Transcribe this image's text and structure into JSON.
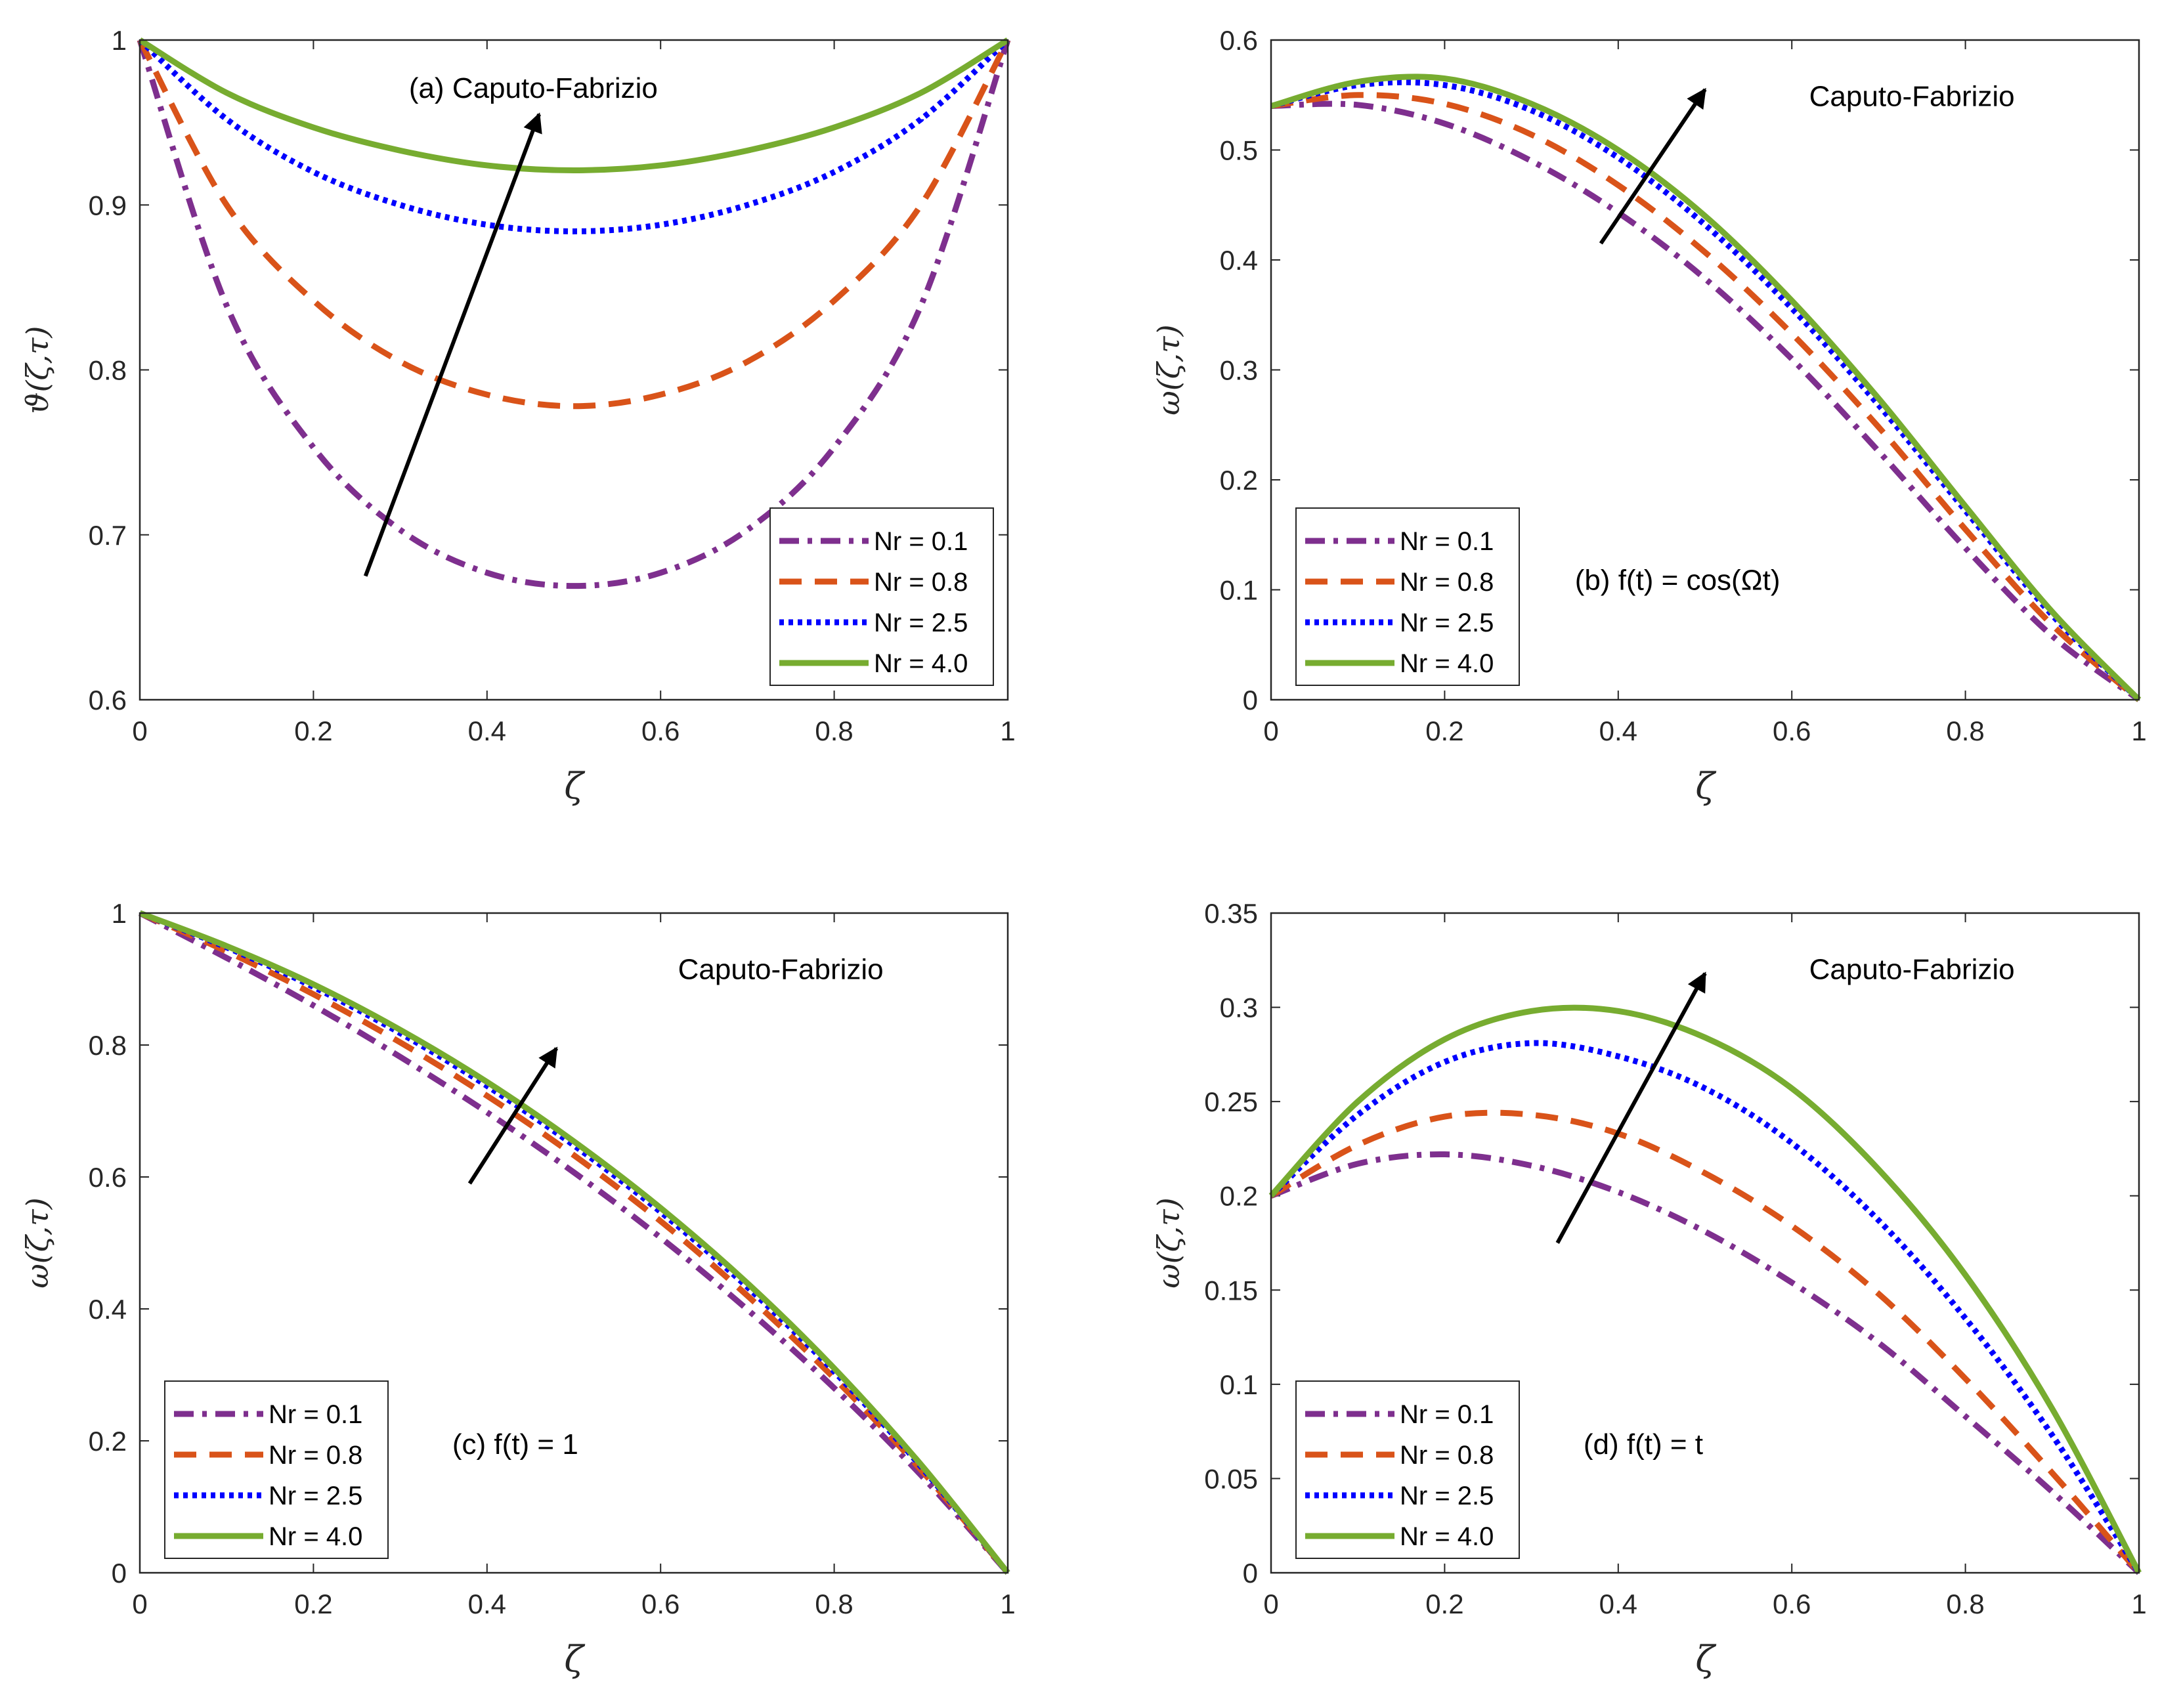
{
  "figure_title": "",
  "colors": {
    "axes": "#262626",
    "arrow": "#000000",
    "series": [
      "#7E2F8E",
      "#D95319",
      "#0000FF",
      "#77AC30"
    ]
  },
  "chart_data": [
    {
      "type": "line",
      "id": "a",
      "title": "",
      "xlabel": "ζ",
      "ylabel": "ϑ(ζ,τ)",
      "xlim": [
        0,
        1
      ],
      "ylim": [
        0.6,
        1
      ],
      "xticks": [
        "0",
        "0.2",
        "0.4",
        "0.6",
        "0.8",
        "1"
      ],
      "yticks": [
        "0.6",
        "0.7",
        "0.8",
        "0.9",
        "1"
      ],
      "annotations": [
        {
          "text": "(a) Caputo-Fabrizio",
          "x": 0.31,
          "y": 0.965
        }
      ],
      "arrow": {
        "from": [
          0.26,
          0.675
        ],
        "to": [
          0.46,
          0.955
        ]
      },
      "legend": {
        "position": "bottom-right",
        "entries": [
          "Nr = 0.1",
          "Nr = 0.8",
          "Nr = 2.5",
          "Nr = 4.0"
        ]
      },
      "x": [
        0,
        0.1,
        0.2,
        0.3,
        0.4,
        0.5,
        0.6,
        0.7,
        0.8,
        0.9,
        1
      ],
      "series": [
        {
          "name": "Nr = 0.1",
          "style": "dashdot",
          "values": [
            1,
            0.839,
            0.753,
            0.703,
            0.677,
            0.669,
            0.677,
            0.703,
            0.753,
            0.839,
            1
          ]
        },
        {
          "name": "Nr = 0.8",
          "style": "dashed",
          "values": [
            1,
            0.9,
            0.842,
            0.805,
            0.785,
            0.778,
            0.785,
            0.805,
            0.842,
            0.9,
            1
          ]
        },
        {
          "name": "Nr = 2.5",
          "style": "dotted",
          "values": [
            1,
            0.952,
            0.92,
            0.9,
            0.888,
            0.884,
            0.888,
            0.9,
            0.92,
            0.952,
            1
          ]
        },
        {
          "name": "Nr = 4.0",
          "style": "solid",
          "values": [
            1,
            0.968,
            0.947,
            0.933,
            0.924,
            0.921,
            0.924,
            0.933,
            0.947,
            0.968,
            1
          ]
        }
      ]
    },
    {
      "type": "line",
      "id": "b",
      "title": "",
      "xlabel": "ζ",
      "ylabel": "ω(ζ,τ)",
      "xlim": [
        0,
        1
      ],
      "ylim": [
        0,
        0.6
      ],
      "xticks": [
        "0",
        "0.2",
        "0.4",
        "0.6",
        "0.8",
        "1"
      ],
      "yticks": [
        "0",
        "0.1",
        "0.2",
        "0.3",
        "0.4",
        "0.5",
        "0.6"
      ],
      "annotations": [
        {
          "text": "Caputo-Fabrizio",
          "x": 0.62,
          "y": 0.54
        },
        {
          "text": "(b) f(t) = cos(Ωt)",
          "x": 0.35,
          "y": 0.1
        }
      ],
      "arrow": {
        "from": [
          0.38,
          0.415
        ],
        "to": [
          0.5,
          0.555
        ]
      },
      "legend": {
        "position": "bottom-left",
        "entries": [
          "Nr = 0.1",
          "Nr = 0.8",
          "Nr = 2.5",
          "Nr = 4.0"
        ]
      },
      "x": [
        0,
        0.1,
        0.2,
        0.3,
        0.4,
        0.5,
        0.6,
        0.7,
        0.8,
        0.9,
        1
      ],
      "series": [
        {
          "name": "Nr = 0.1",
          "style": "dashdot",
          "values": [
            0.54,
            0.541,
            0.524,
            0.49,
            0.443,
            0.383,
            0.31,
            0.226,
            0.138,
            0.058,
            0
          ]
        },
        {
          "name": "Nr = 0.8",
          "style": "dashed",
          "values": [
            0.54,
            0.55,
            0.542,
            0.514,
            0.468,
            0.407,
            0.333,
            0.248,
            0.155,
            0.068,
            0
          ]
        },
        {
          "name": "Nr = 2.5",
          "style": "dotted",
          "values": [
            0.54,
            0.559,
            0.559,
            0.536,
            0.493,
            0.432,
            0.356,
            0.268,
            0.172,
            0.077,
            0
          ]
        },
        {
          "name": "Nr = 4.0",
          "style": "solid",
          "values": [
            0.54,
            0.562,
            0.565,
            0.542,
            0.5,
            0.44,
            0.363,
            0.274,
            0.176,
            0.08,
            0
          ]
        }
      ]
    },
    {
      "type": "line",
      "id": "c",
      "title": "",
      "xlabel": "ζ",
      "ylabel": "ω(ζ,τ)",
      "xlim": [
        0,
        1
      ],
      "ylim": [
        0,
        1
      ],
      "xticks": [
        "0",
        "0.2",
        "0.4",
        "0.6",
        "0.8",
        "1"
      ],
      "yticks": [
        "0",
        "0.2",
        "0.4",
        "0.6",
        "0.8",
        "1"
      ],
      "annotations": [
        {
          "text": "Caputo-Fabrizio",
          "x": 0.62,
          "y": 0.9
        },
        {
          "text": "(c) f(t) = 1",
          "x": 0.36,
          "y": 0.18
        }
      ],
      "arrow": {
        "from": [
          0.38,
          0.59
        ],
        "to": [
          0.48,
          0.795
        ]
      },
      "legend": {
        "position": "bottom-left",
        "entries": [
          "Nr = 0.1",
          "Nr = 0.8",
          "Nr = 2.5",
          "Nr = 4.0"
        ]
      },
      "x": [
        0,
        0.1,
        0.2,
        0.3,
        0.4,
        0.5,
        0.6,
        0.7,
        0.8,
        0.9,
        1
      ],
      "series": [
        {
          "name": "Nr = 0.1",
          "style": "dashdot",
          "values": [
            1,
            0.932,
            0.86,
            0.782,
            0.698,
            0.607,
            0.508,
            0.399,
            0.28,
            0.148,
            0
          ]
        },
        {
          "name": "Nr = 0.8",
          "style": "dashed",
          "values": [
            1,
            0.942,
            0.877,
            0.804,
            0.723,
            0.633,
            0.533,
            0.42,
            0.295,
            0.156,
            0
          ]
        },
        {
          "name": "Nr = 2.5",
          "style": "dotted",
          "values": [
            1,
            0.948,
            0.888,
            0.818,
            0.738,
            0.648,
            0.547,
            0.433,
            0.305,
            0.161,
            0
          ]
        },
        {
          "name": "Nr = 4.0",
          "style": "solid",
          "values": [
            1,
            0.95,
            0.892,
            0.823,
            0.744,
            0.654,
            0.553,
            0.439,
            0.31,
            0.164,
            0
          ]
        }
      ]
    },
    {
      "type": "line",
      "id": "d",
      "title": "",
      "xlabel": "ζ",
      "ylabel": "ω(ζ,τ)",
      "xlim": [
        0,
        1
      ],
      "ylim": [
        0,
        0.35
      ],
      "xticks": [
        "0",
        "0.2",
        "0.4",
        "0.6",
        "0.8",
        "1"
      ],
      "yticks": [
        "0",
        "0.05",
        "0.1",
        "0.15",
        "0.2",
        "0.25",
        "0.3",
        "0.35"
      ],
      "annotations": [
        {
          "text": "Caputo-Fabrizio",
          "x": 0.62,
          "y": 0.315
        },
        {
          "text": "(d) f(t) = t",
          "x": 0.36,
          "y": 0.063
        }
      ],
      "arrow": {
        "from": [
          0.33,
          0.175
        ],
        "to": [
          0.5,
          0.318
        ]
      },
      "legend": {
        "position": "bottom-left",
        "entries": [
          "Nr = 0.1",
          "Nr = 0.8",
          "Nr = 2.5",
          "Nr = 4.0"
        ]
      },
      "x": [
        0,
        0.1,
        0.2,
        0.3,
        0.4,
        0.5,
        0.6,
        0.7,
        0.8,
        0.9,
        1
      ],
      "series": [
        {
          "name": "Nr = 0.1",
          "style": "dashdot",
          "values": [
            0.2,
            0.217,
            0.222,
            0.216,
            0.202,
            0.181,
            0.154,
            0.122,
            0.083,
            0.043,
            0
          ]
        },
        {
          "name": "Nr = 0.8",
          "style": "dashed",
          "values": [
            0.2,
            0.227,
            0.242,
            0.243,
            0.233,
            0.212,
            0.184,
            0.148,
            0.103,
            0.053,
            0
          ]
        },
        {
          "name": "Nr = 2.5",
          "style": "dotted",
          "values": [
            0.2,
            0.243,
            0.271,
            0.281,
            0.274,
            0.257,
            0.228,
            0.187,
            0.135,
            0.073,
            0
          ]
        },
        {
          "name": "Nr = 4.0",
          "style": "solid",
          "values": [
            0.2,
            0.25,
            0.283,
            0.298,
            0.298,
            0.284,
            0.257,
            0.214,
            0.158,
            0.087,
            0
          ]
        }
      ]
    }
  ]
}
